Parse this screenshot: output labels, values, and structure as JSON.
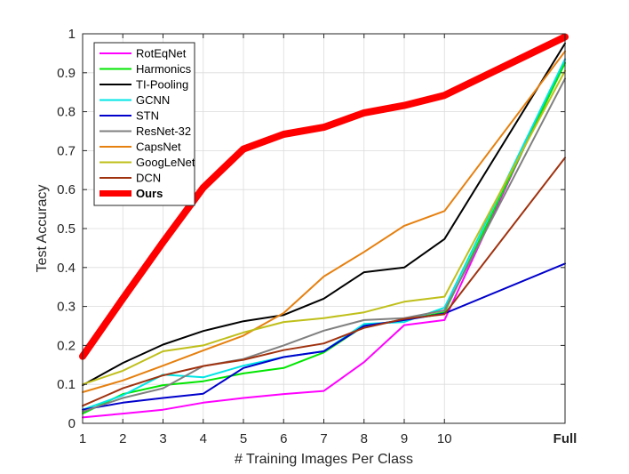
{
  "chart_data": {
    "type": "line",
    "title": "",
    "xlabel": "# Training Images Per Class",
    "ylabel": "Test Accuracy",
    "categories": [
      "1",
      "2",
      "3",
      "4",
      "5",
      "6",
      "7",
      "8",
      "9",
      "10",
      "Full"
    ],
    "x_positions": [
      1,
      2,
      3,
      4,
      5,
      6,
      7,
      8,
      9,
      10,
      13
    ],
    "xlim": [
      1,
      13
    ],
    "ylim": [
      0,
      1
    ],
    "yticks": [
      "0",
      "0.1",
      "0.2",
      "0.3",
      "0.4",
      "0.5",
      "0.6",
      "0.7",
      "0.8",
      "0.9",
      "1"
    ],
    "grid": true,
    "legend_position": "top-left",
    "series": [
      {
        "name": "RotEqNet",
        "color": "#ff00ff",
        "values": [
          0.015,
          0.025,
          0.035,
          0.053,
          0.065,
          0.075,
          0.083,
          0.157,
          0.252,
          0.265,
          0.935
        ]
      },
      {
        "name": "Harmonics",
        "color": "#00e600",
        "values": [
          0.025,
          0.075,
          0.098,
          0.108,
          0.128,
          0.142,
          0.182,
          0.25,
          0.265,
          0.285,
          0.925
        ]
      },
      {
        "name": "TI-Pooling",
        "color": "#000000",
        "values": [
          0.098,
          0.155,
          0.202,
          0.237,
          0.262,
          0.278,
          0.32,
          0.388,
          0.4,
          0.473,
          0.975
        ]
      },
      {
        "name": "GCNN",
        "color": "#00e5e5",
        "values": [
          0.035,
          0.072,
          0.125,
          0.118,
          0.148,
          0.17,
          0.185,
          0.255,
          0.26,
          0.297,
          0.935
        ]
      },
      {
        "name": "STN",
        "color": "#0000cc",
        "values": [
          0.035,
          0.053,
          0.065,
          0.076,
          0.142,
          0.17,
          0.185,
          0.25,
          0.265,
          0.282,
          0.41
        ]
      },
      {
        "name": "ResNet-32",
        "color": "#808080",
        "values": [
          0.03,
          0.065,
          0.09,
          0.147,
          0.165,
          0.2,
          0.238,
          0.265,
          0.27,
          0.29,
          0.885
        ]
      },
      {
        "name": "CapsNet",
        "color": "#e6800f",
        "values": [
          0.08,
          0.11,
          0.148,
          0.187,
          0.225,
          0.283,
          0.377,
          0.44,
          0.507,
          0.545,
          0.955
        ]
      },
      {
        "name": "GoogLeNet",
        "color": "#bfbf1a",
        "values": [
          0.1,
          0.135,
          0.185,
          0.2,
          0.233,
          0.26,
          0.27,
          0.285,
          0.312,
          0.325,
          0.905
        ]
      },
      {
        "name": "DCN",
        "color": "#a0320f",
        "values": [
          0.045,
          0.09,
          0.123,
          0.147,
          0.163,
          0.188,
          0.205,
          0.245,
          0.268,
          0.28,
          0.682
        ]
      },
      {
        "name": "Ours",
        "color": "#ff0000",
        "bold": true,
        "values": [
          0.172,
          0.32,
          0.465,
          0.605,
          0.704,
          0.742,
          0.76,
          0.797,
          0.816,
          0.842,
          0.992
        ]
      }
    ]
  }
}
